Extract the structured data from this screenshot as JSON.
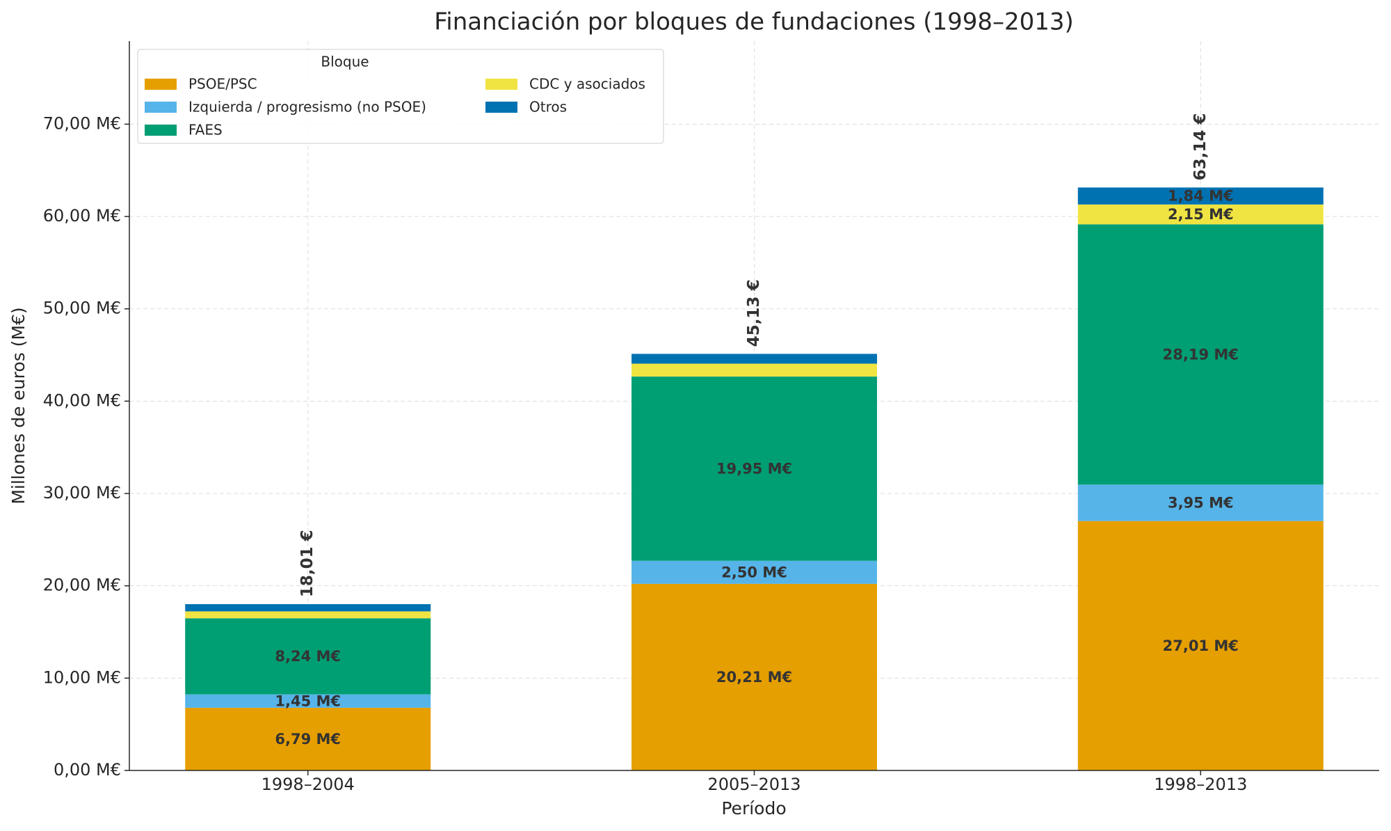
{
  "chart_data": {
    "type": "stacked_bar",
    "title": "Financiación por bloques de fundaciones (1998–2013)",
    "x_label": "Período",
    "y_label": "Millones de euros (M€)",
    "categories": [
      "1998–2004",
      "2005–2013",
      "1998–2013"
    ],
    "series": [
      {
        "name": "PSOE/PSC",
        "color": "#E69F00",
        "values": [
          6.79,
          20.21,
          27.01
        ],
        "value_labels": [
          "6,79 M€",
          "20,21 M€",
          "27,01 M€"
        ]
      },
      {
        "name": "Izquierda / progresismo (no PSOE)",
        "color": "#56B4E9",
        "values": [
          1.45,
          2.5,
          3.95
        ],
        "value_labels": [
          "1,45 M€",
          "2,50 M€",
          "3,95 M€"
        ]
      },
      {
        "name": "FAES",
        "color": "#009E73",
        "values": [
          8.24,
          19.95,
          28.19
        ],
        "value_labels": [
          "8,24 M€",
          "19,95 M€",
          "28,19 M€"
        ]
      },
      {
        "name": "CDC y asociados",
        "color": "#F0E442",
        "values": [
          0.75,
          1.4,
          2.15
        ],
        "value_labels": [
          null,
          null,
          "2,15 M€"
        ]
      },
      {
        "name": "Otros",
        "color": "#0072B2",
        "values": [
          0.78,
          1.06,
          1.84
        ],
        "value_labels": [
          null,
          null,
          "1,84 M€"
        ]
      }
    ],
    "totals": [
      18.01,
      45.13,
      63.14
    ],
    "total_labels": [
      "18,01 €",
      "45,13 €",
      "63,14 €"
    ],
    "ylim": [
      0,
      79
    ],
    "yticks": [
      {
        "value": 0,
        "label": "0,00 M€"
      },
      {
        "value": 10,
        "label": "10,00 M€"
      },
      {
        "value": 20,
        "label": "20,00 M€"
      },
      {
        "value": 30,
        "label": "30,00 M€"
      },
      {
        "value": 40,
        "label": "40,00 M€"
      },
      {
        "value": 50,
        "label": "50,00 M€"
      },
      {
        "value": 60,
        "label": "60,00 M€"
      },
      {
        "value": 70,
        "label": "70,00 M€"
      }
    ],
    "grid": true,
    "legend_title": "Bloque",
    "legend_position": "upper left"
  }
}
